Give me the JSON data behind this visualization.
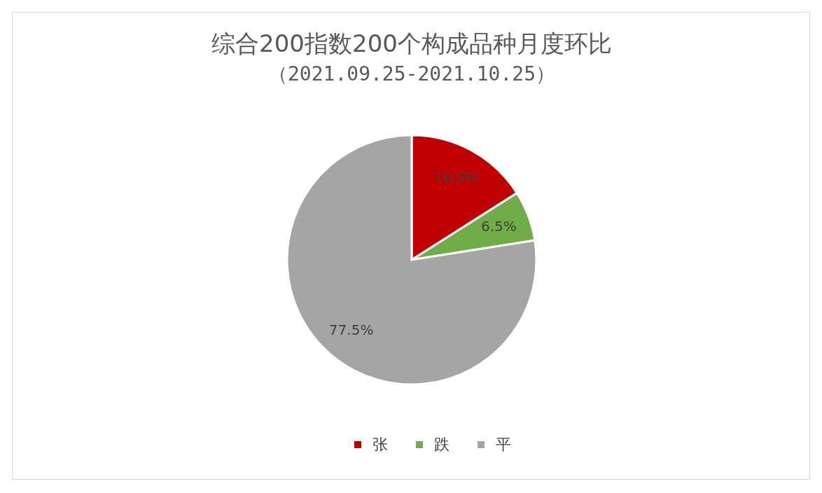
{
  "chart_data": {
    "type": "pie",
    "title": "综合200指数200个构成品种月度环比",
    "subtitle": "（2021.09.25-2021.10.25）",
    "categories": [
      "张",
      "跌",
      "平"
    ],
    "values": [
      16.0,
      6.5,
      77.5
    ],
    "colors": [
      "#c00000",
      "#70ad47",
      "#a5a5a5"
    ],
    "value_labels": [
      "16.0%",
      "6.5%",
      "77.5%"
    ],
    "legend": "bottom"
  }
}
